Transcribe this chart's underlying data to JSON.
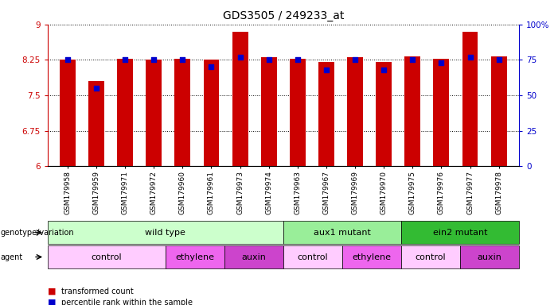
{
  "title": "GDS3505 / 249233_at",
  "samples": [
    "GSM179958",
    "GSM179959",
    "GSM179971",
    "GSM179972",
    "GSM179960",
    "GSM179961",
    "GSM179973",
    "GSM179974",
    "GSM179963",
    "GSM179967",
    "GSM179969",
    "GSM179970",
    "GSM179975",
    "GSM179976",
    "GSM179977",
    "GSM179978"
  ],
  "red_values": [
    8.25,
    7.8,
    8.28,
    8.25,
    8.28,
    8.25,
    8.85,
    8.3,
    8.28,
    8.2,
    8.3,
    8.2,
    8.32,
    8.28,
    8.85,
    8.32
  ],
  "blue_values": [
    75,
    55,
    75,
    75,
    75,
    70,
    77,
    75,
    75,
    68,
    75,
    68,
    75,
    73,
    77,
    75
  ],
  "ylim_left": [
    6,
    9
  ],
  "ylim_right": [
    0,
    100
  ],
  "yticks_left": [
    6,
    6.75,
    7.5,
    8.25,
    9
  ],
  "yticks_right": [
    0,
    25,
    50,
    75,
    100
  ],
  "ytick_labels_right": [
    "0",
    "25",
    "50",
    "75",
    "100%"
  ],
  "bar_color": "#cc0000",
  "dot_color": "#0000cc",
  "genotype_groups": [
    {
      "label": "wild type",
      "start": 0,
      "end": 8,
      "color": "#ccffcc"
    },
    {
      "label": "aux1 mutant",
      "start": 8,
      "end": 12,
      "color": "#99ee99"
    },
    {
      "label": "ein2 mutant",
      "start": 12,
      "end": 16,
      "color": "#33bb33"
    }
  ],
  "agent_groups": [
    {
      "label": "control",
      "start": 0,
      "end": 4,
      "color": "#ffccff"
    },
    {
      "label": "ethylene",
      "start": 4,
      "end": 6,
      "color": "#ee66ee"
    },
    {
      "label": "auxin",
      "start": 6,
      "end": 8,
      "color": "#cc44cc"
    },
    {
      "label": "control",
      "start": 8,
      "end": 10,
      "color": "#ffccff"
    },
    {
      "label": "ethylene",
      "start": 10,
      "end": 12,
      "color": "#ee66ee"
    },
    {
      "label": "control",
      "start": 12,
      "end": 14,
      "color": "#ffccff"
    },
    {
      "label": "auxin",
      "start": 14,
      "end": 16,
      "color": "#cc44cc"
    }
  ],
  "legend_red": "transformed count",
  "legend_blue": "percentile rank within the sample",
  "bar_width": 0.55
}
